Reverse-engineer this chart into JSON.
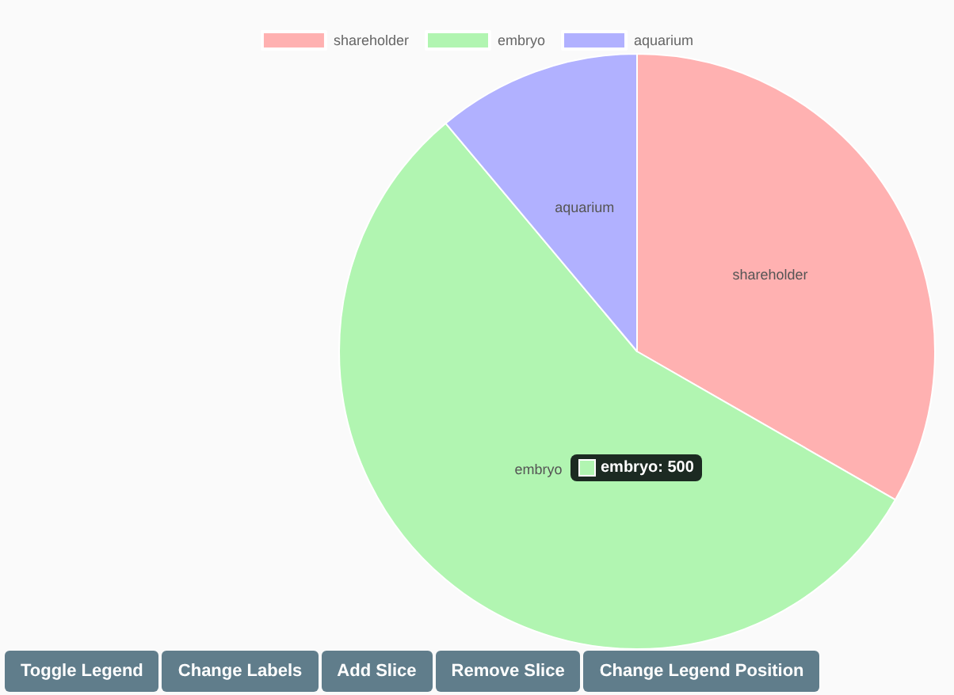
{
  "chart_data": {
    "type": "pie",
    "categories": [
      "shareholder",
      "embryo",
      "aquarium"
    ],
    "values": [
      33.3,
      55.6,
      11.1
    ],
    "colors": [
      "#ffb1b1",
      "#b1f5b1",
      "#b1b1ff"
    ],
    "legend": "top",
    "annotations": [
      "embryo: 500",
      "Toggle Legend",
      "Change Labels",
      "Add Slice",
      "Remove Slice",
      "Change Legend Position"
    ]
  }
}
